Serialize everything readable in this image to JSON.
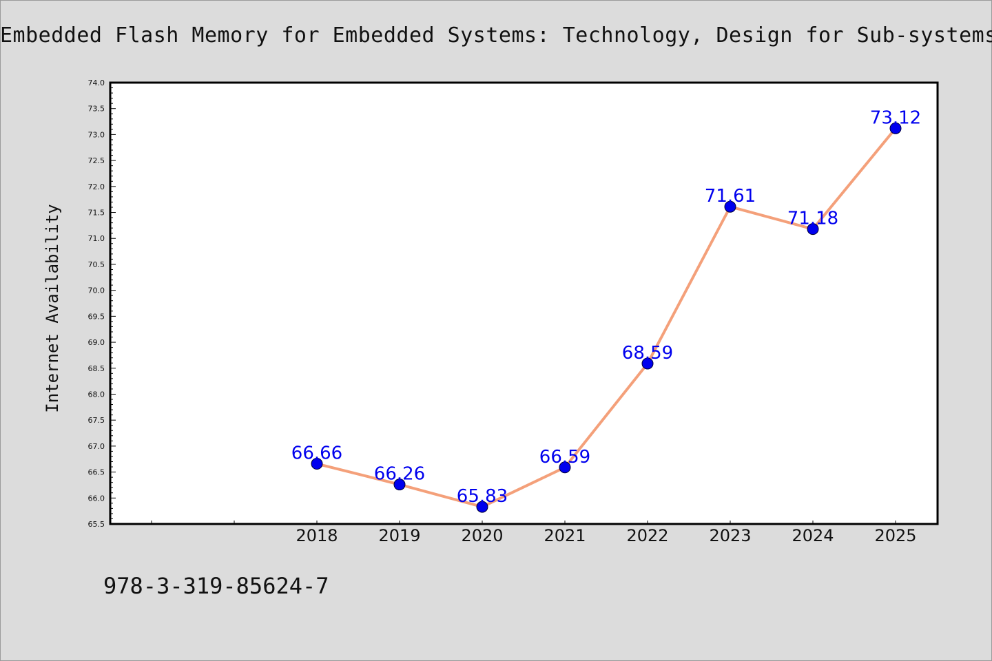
{
  "chart_data": {
    "type": "line",
    "title": "Embedded Flash Memory for Embedded Systems: Technology, Design for Sub-systems,",
    "ylabel": "Internet Availability",
    "xlabel": "",
    "categories": [
      "2018",
      "2019",
      "2020",
      "2021",
      "2022",
      "2023",
      "2024",
      "2025"
    ],
    "series": [
      {
        "values": [
          66.66,
          66.26,
          65.83,
          66.59,
          68.59,
          71.61,
          71.18,
          73.12
        ],
        "labels": [
          "66.66",
          "66.26",
          "65.83",
          "66.59",
          "68.59",
          "71.61",
          "71.18",
          "73.12"
        ],
        "line_color": "#f4a07a",
        "marker_color": "#0000ee"
      }
    ],
    "ylim": [
      65.5,
      74.0
    ],
    "yticks": [
      "65.5",
      "66.0",
      "66.5",
      "67.0",
      "67.5",
      "68.0",
      "68.5",
      "69.0",
      "69.5",
      "70.0",
      "70.5",
      "71.0",
      "71.5",
      "72.0",
      "72.5",
      "73.0",
      "73.5",
      "74.0"
    ],
    "grid": false,
    "legend": "none"
  },
  "footer": {
    "isbn": "978-3-319-85624-7"
  },
  "colors": {
    "background": "#dcdcdc",
    "plot_background": "#ffffff",
    "line": "#f4a07a",
    "marker": "#0000ee",
    "data_label": "#0000ee"
  }
}
